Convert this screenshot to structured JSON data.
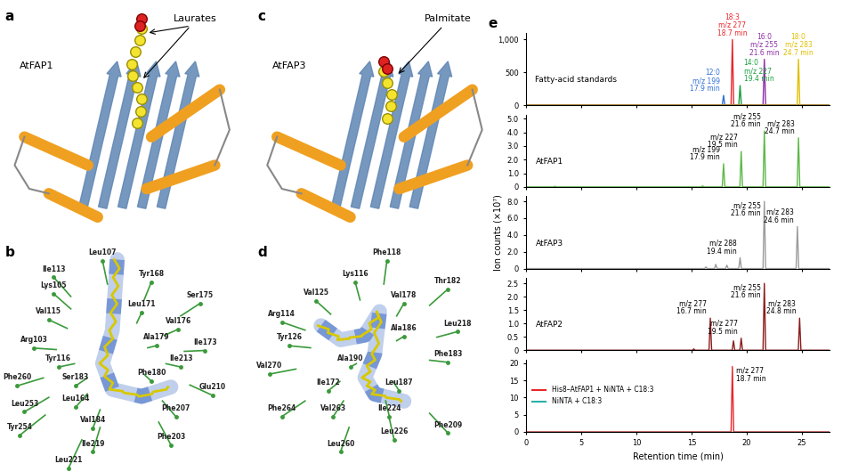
{
  "panels": [
    {
      "label": "a",
      "protein": "AtFAP1",
      "ligand": "Laurates"
    },
    {
      "label": "b",
      "residues": [
        "Leu107",
        "Ile113",
        "Lys105",
        "Tyr168",
        "Val115",
        "Leu171",
        "Ser175",
        "Val176",
        "Ile173",
        "Arg103",
        "Ala179",
        "Tyr116",
        "Ile213",
        "Phe260",
        "Ser183",
        "Phe180",
        "Leu164",
        "Glu210",
        "Leu253",
        "Tyr254",
        "Val184",
        "Phe207",
        "Ile219",
        "Phe203",
        "Leu221"
      ]
    },
    {
      "label": "c",
      "protein": "AtFAP3",
      "ligand": "Palmitate"
    },
    {
      "label": "d",
      "residues": [
        "Phe118",
        "Lys116",
        "Val125",
        "Thr182",
        "Val178",
        "Arg114",
        "Tyr126",
        "Ala186",
        "Leu218",
        "Phe183",
        "Ala190",
        "Val270",
        "Ile172",
        "Leu187",
        "Phe264",
        "Val263",
        "Ile224",
        "Leu260",
        "Leu226",
        "Phe209"
      ]
    }
  ],
  "chart_label": "e",
  "chart_data": [
    {
      "type": "line",
      "trace_label": "Fatty-acid standards",
      "xlim": [
        0,
        27.5
      ],
      "xticks": [
        0,
        5,
        10,
        15,
        20,
        25
      ],
      "ylim": [
        0,
        1100
      ],
      "yticks": [
        0,
        500,
        {
          "value": 1000,
          "label": "1,000"
        }
      ],
      "tick_labels": "y",
      "series": [
        {
          "color": "#2f6fd6",
          "peaks": [
            {
              "x": 17.9,
              "y": 150,
              "label": "12:0\nm/z 199\n17.9 min"
            }
          ]
        },
        {
          "color": "#e8262b",
          "peaks": [
            {
              "x": 18.7,
              "y": 1000,
              "label": "18:3\nm/z 277\n18.7 min"
            }
          ]
        },
        {
          "color": "#1a9e3f",
          "peaks": [
            {
              "x": 19.4,
              "y": 300,
              "label": "14:0\nm/z 227\n19.4 min"
            }
          ]
        },
        {
          "color": "#8e2fa6",
          "peaks": [
            {
              "x": 21.6,
              "y": 700,
              "label": "16:0\nm/z 255\n21.6 min"
            }
          ]
        },
        {
          "color": "#e0c000",
          "peaks": [
            {
              "x": 24.7,
              "y": 700,
              "label": "18:0\nm/z 283\n24.7 min"
            }
          ]
        }
      ]
    },
    {
      "type": "line",
      "trace_label": "AtFAP1",
      "xlim": [
        0,
        27.5
      ],
      "xticks": [
        0,
        5,
        10,
        15,
        20,
        25
      ],
      "ylim": [
        0,
        5.3
      ],
      "yticks": [
        0,
        {
          "value": 1,
          "label": "1.0"
        },
        {
          "value": 2,
          "label": "2.0"
        },
        {
          "value": 3,
          "label": "3.0"
        },
        {
          "value": 4,
          "label": "4.0"
        },
        {
          "value": 5,
          "label": "5.0"
        }
      ],
      "tick_labels": "y",
      "series": [
        {
          "color": "#5cb946",
          "peaks": [
            {
              "x": 2.6,
              "y": 0.05
            },
            {
              "x": 16.0,
              "y": 0.08
            },
            {
              "x": 17.9,
              "y": 1.7,
              "label": "m/z 199\n17.9 min"
            },
            {
              "x": 19.5,
              "y": 2.6,
              "label": "m/z 227\n19.5 min"
            },
            {
              "x": 21.6,
              "y": 4.1,
              "label": "m/z 255\n21.6 min"
            },
            {
              "x": 24.7,
              "y": 3.6,
              "label": "m/z 283\n24.7 min"
            }
          ]
        }
      ]
    },
    {
      "type": "line",
      "trace_label": "AtFAP3",
      "ylabel": "Ion counts (×10⁷)",
      "xlim": [
        0,
        27.5
      ],
      "xticks": [
        0,
        5,
        10,
        15,
        20,
        25
      ],
      "ylim": [
        0,
        8.6
      ],
      "yticks": [
        0,
        {
          "value": 2,
          "label": "2.0"
        },
        {
          "value": 4,
          "label": "4.0"
        },
        {
          "value": 6,
          "label": "6.0"
        },
        {
          "value": 8,
          "label": "8.0"
        }
      ],
      "tick_labels": "y",
      "series": [
        {
          "color": "#9c9c9c",
          "peaks": [
            {
              "x": 16.3,
              "y": 0.2
            },
            {
              "x": 17.2,
              "y": 0.5
            },
            {
              "x": 18.2,
              "y": 0.4
            },
            {
              "x": 19.4,
              "y": 1.3,
              "label": "m/z 288\n19.4 min"
            },
            {
              "x": 21.6,
              "y": 8.0,
              "label": "m/z 255\n21.6 min"
            },
            {
              "x": 24.6,
              "y": 5.0,
              "label": "m/z 283\n24.6 min"
            }
          ]
        }
      ]
    },
    {
      "type": "line",
      "trace_label": "AtFAP2",
      "xlim": [
        0,
        27.5
      ],
      "xticks": [
        0,
        5,
        10,
        15,
        20,
        25
      ],
      "ylim": [
        0,
        2.7
      ],
      "yticks": [
        0,
        0.5,
        {
          "value": 1,
          "label": "1.0"
        },
        1.5,
        {
          "value": 2,
          "label": "2.0"
        },
        2.5
      ],
      "tick_labels": "y",
      "series": [
        {
          "color": "#8b1c1c",
          "peaks": [
            {
              "x": 15.2,
              "y": 0.05
            },
            {
              "x": 16.7,
              "y": 1.2,
              "label": "m/z 277\n16.7 min"
            },
            {
              "x": 18.8,
              "y": 0.35
            },
            {
              "x": 19.5,
              "y": 0.45,
              "label": "m/z 277\n19.5 min"
            },
            {
              "x": 21.6,
              "y": 2.5,
              "label": "m/z 255\n21.6 min"
            },
            {
              "x": 24.8,
              "y": 1.2,
              "label": "m/z 283\n24.8 min"
            }
          ]
        }
      ]
    },
    {
      "type": "line",
      "xlabel": "Retention time (min)",
      "legend": "center left",
      "xlim": [
        0,
        27.5
      ],
      "xticks": [
        0,
        5,
        10,
        15,
        20,
        25
      ],
      "ylim": [
        0,
        21
      ],
      "yticks": [
        0,
        5,
        10,
        15,
        20
      ],
      "series": [
        {
          "name": "His8–AtFAP1 + NiNTA + C18:3",
          "color": "#e8262b",
          "peaks": [
            {
              "x": 18.7,
              "y": 19,
              "label": "m/z 277\n18.7 min"
            }
          ]
        },
        {
          "name": "NiNTA + C18:3",
          "color": "#2bb0a8",
          "peaks": []
        }
      ]
    }
  ]
}
